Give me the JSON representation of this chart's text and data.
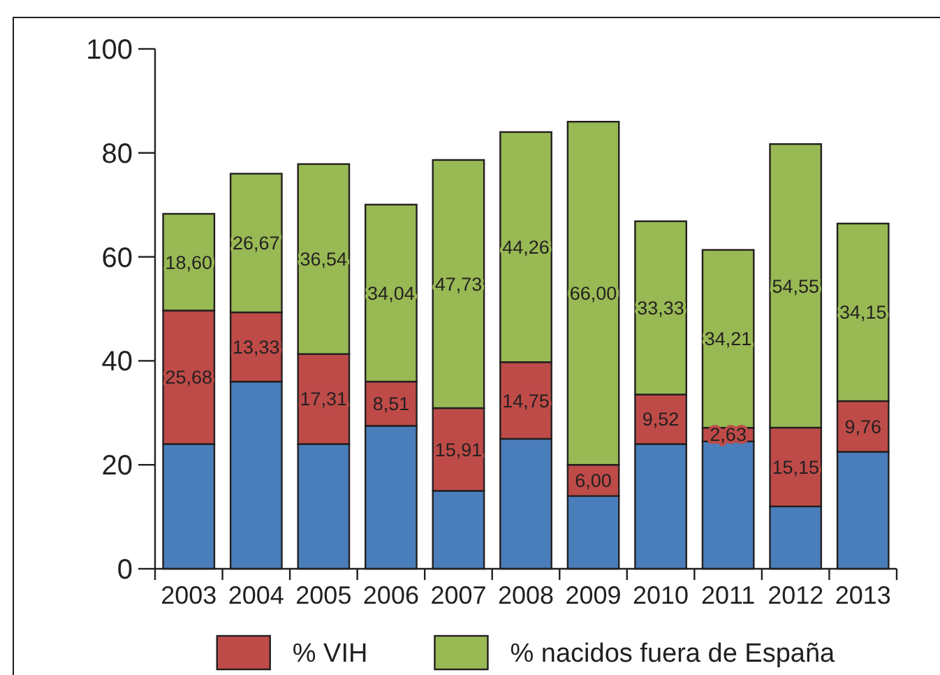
{
  "chart_data": {
    "type": "bar",
    "stacked": true,
    "categories": [
      "2003",
      "2004",
      "2005",
      "2006",
      "2007",
      "2008",
      "2009",
      "2010",
      "2011",
      "2012",
      "2013"
    ],
    "series": [
      {
        "color": "#4a7ebb",
        "values": [
          24,
          36,
          24,
          27.5,
          15,
          25,
          14,
          24,
          24.5,
          12,
          22.5
        ]
      },
      {
        "name": "% VIH",
        "color": "#be4b48",
        "values": [
          25.68,
          13.33,
          17.31,
          8.51,
          15.91,
          14.75,
          6,
          9.52,
          2.63,
          15.15,
          9.76
        ],
        "value_labels": [
          "25,68",
          "13,33",
          "17,31",
          "8,51",
          "15,91",
          "14,75",
          "6,00",
          "9,52",
          "2,63",
          "15,15",
          "9,76"
        ]
      },
      {
        "name": "% nacidos fuera de España",
        "color": "#98b954",
        "values": [
          18.6,
          26.67,
          36.54,
          34.04,
          47.73,
          44.26,
          66,
          33.33,
          34.21,
          54.55,
          34.15
        ],
        "value_labels": [
          "18,60",
          "26,67",
          "36,54",
          "34,04",
          "47,73",
          "44,26",
          "66,00",
          "33,33",
          "34,21",
          "54,55",
          "34,15"
        ]
      }
    ],
    "ylim": [
      0,
      100
    ],
    "yticks": [
      0,
      20,
      40,
      60,
      80,
      100
    ],
    "legend": "bottom"
  }
}
